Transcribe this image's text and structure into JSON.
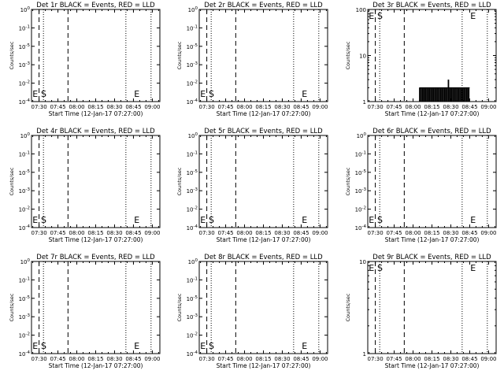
{
  "chart_data": [
    {
      "title": "Det 1r BLACK = Events, RED = LLD",
      "type": "line",
      "ylabel": "Counts/sec",
      "xlabel": "Start Time (12-Jan-17 07:27:00)",
      "xticks": [
        "07:30",
        "07:45",
        "08:00",
        "08:15",
        "08:30",
        "08:45",
        "09:00"
      ],
      "xlim_minutes": [
        -3,
        99
      ],
      "yscale": "log",
      "ylim": [
        0.9,
        1e-06
      ],
      "yticks": [
        {
          "mant": "10",
          "exp": "-4"
        },
        {
          "mant": "10",
          "exp": "-2"
        },
        {
          "mant": "10",
          "exp": "-3"
        },
        {
          "mant": "10",
          "exp": "-5"
        },
        {
          "mant": "10",
          "exp": "-1"
        },
        {
          "mant": "10",
          "exp": "0"
        }
      ],
      "markers": [
        {
          "label": "E",
          "t": -2.2
        },
        {
          "label": "S",
          "t": 4.5
        }
      ],
      "markers_right": [
        {
          "label": "E",
          "t": 78.5
        }
      ],
      "dashed_t": [
        3,
        26
      ],
      "dotted_t": [
        6.5,
        72,
        92
      ],
      "events": [],
      "lld": []
    },
    {
      "title": "Det 2r BLACK = Events, RED = LLD",
      "type": "line",
      "ylabel": "Counts/sec",
      "xlabel": "Start Time (12-Jan-17 07:27:00)",
      "xticks": [
        "07:30",
        "07:45",
        "08:00",
        "08:15",
        "08:30",
        "08:45",
        "09:00"
      ],
      "xlim_minutes": [
        -3,
        99
      ],
      "yscale": "log",
      "ylim": [
        0.9,
        1e-06
      ],
      "yticks": [
        {
          "mant": "10",
          "exp": "-4"
        },
        {
          "mant": "10",
          "exp": "-2"
        },
        {
          "mant": "10",
          "exp": "-3"
        },
        {
          "mant": "10",
          "exp": "-5"
        },
        {
          "mant": "10",
          "exp": "-1"
        },
        {
          "mant": "10",
          "exp": "0"
        }
      ],
      "markers": [
        {
          "label": "E",
          "t": -2.2
        },
        {
          "label": "S",
          "t": 4.5
        }
      ],
      "markers_right": [
        {
          "label": "E",
          "t": 78.5
        }
      ],
      "dashed_t": [
        3,
        26
      ],
      "dotted_t": [
        6.5,
        72,
        92
      ],
      "events": [],
      "lld": []
    },
    {
      "title": "Det 3r BLACK = Events, RED = LLD",
      "type": "line",
      "ylabel": "Counts/sec",
      "xlabel": "Start Time (12-Jan-17 07:27:00)",
      "xticks": [
        "07:30",
        "07:45",
        "08:00",
        "08:15",
        "08:30",
        "08:45",
        "09:00"
      ],
      "xlim_minutes": [
        -3,
        99
      ],
      "yscale": "log",
      "ylim": [
        1,
        100
      ],
      "yticks": [
        {
          "mant": "1",
          "exp": ""
        },
        {
          "mant": "10",
          "exp": ""
        },
        {
          "mant": "100",
          "exp": ""
        }
      ],
      "markers": [
        {
          "label": "E",
          "t": -2.2
        },
        {
          "label": "S",
          "t": 4.5
        }
      ],
      "markers_right": [
        {
          "label": "E",
          "t": 78.5
        }
      ],
      "dashed_t": [
        3,
        26
      ],
      "dotted_t": [
        6.5,
        72,
        92
      ],
      "events": [
        {
          "t0": 38,
          "t1": 78,
          "y": 2,
          "spikes": [
            [
              61,
              3
            ]
          ]
        }
      ],
      "lld": []
    },
    {
      "title": "Det 4r BLACK = Events, RED = LLD",
      "type": "line",
      "ylabel": "Counts/sec",
      "xlabel": "Start Time (12-Jan-17 07:27:00)",
      "xticks": [
        "07:30",
        "07:45",
        "08:00",
        "08:15",
        "08:30",
        "08:45",
        "09:00"
      ],
      "xlim_minutes": [
        -3,
        99
      ],
      "yscale": "log",
      "ylim": [
        0.9,
        1e-06
      ],
      "yticks": [
        {
          "mant": "10",
          "exp": "-4"
        },
        {
          "mant": "10",
          "exp": "-2"
        },
        {
          "mant": "10",
          "exp": "-3"
        },
        {
          "mant": "10",
          "exp": "-5"
        },
        {
          "mant": "10",
          "exp": "-1"
        },
        {
          "mant": "10",
          "exp": "0"
        }
      ],
      "markers": [
        {
          "label": "E",
          "t": -2.2
        },
        {
          "label": "S",
          "t": 4.5
        }
      ],
      "markers_right": [
        {
          "label": "E",
          "t": 78.5
        }
      ],
      "dashed_t": [
        3,
        26
      ],
      "dotted_t": [
        6.5,
        72,
        92
      ],
      "events": [],
      "lld": []
    },
    {
      "title": "Det 5r BLACK = Events, RED = LLD",
      "type": "line",
      "ylabel": "Counts/sec",
      "xlabel": "Start Time (12-Jan-17 07:27:00)",
      "xticks": [
        "07:30",
        "07:45",
        "08:00",
        "08:15",
        "08:30",
        "08:45",
        "09:00"
      ],
      "xlim_minutes": [
        -3,
        99
      ],
      "yscale": "log",
      "ylim": [
        0.9,
        1e-06
      ],
      "yticks": [
        {
          "mant": "10",
          "exp": "-4"
        },
        {
          "mant": "10",
          "exp": "-2"
        },
        {
          "mant": "10",
          "exp": "-3"
        },
        {
          "mant": "10",
          "exp": "-5"
        },
        {
          "mant": "10",
          "exp": "-1"
        },
        {
          "mant": "10",
          "exp": "0"
        }
      ],
      "markers": [
        {
          "label": "E",
          "t": -2.2
        },
        {
          "label": "S",
          "t": 4.5
        }
      ],
      "markers_right": [
        {
          "label": "E",
          "t": 78.5
        }
      ],
      "dashed_t": [
        3,
        26
      ],
      "dotted_t": [
        6.5,
        72,
        92
      ],
      "events": [],
      "lld": []
    },
    {
      "title": "Det 6r BLACK = Events, RED = LLD",
      "type": "line",
      "ylabel": "Counts/sec",
      "xlabel": "Start Time (12-Jan-17 07:27:00)",
      "xticks": [
        "07:30",
        "07:45",
        "08:00",
        "08:15",
        "08:30",
        "08:45",
        "09:00"
      ],
      "xlim_minutes": [
        -3,
        99
      ],
      "yscale": "log",
      "ylim": [
        0.9,
        1e-06
      ],
      "yticks": [
        {
          "mant": "10",
          "exp": "-4"
        },
        {
          "mant": "10",
          "exp": "-2"
        },
        {
          "mant": "10",
          "exp": "-3"
        },
        {
          "mant": "10",
          "exp": "-5"
        },
        {
          "mant": "10",
          "exp": "-1"
        },
        {
          "mant": "10",
          "exp": "0"
        }
      ],
      "markers": [
        {
          "label": "E",
          "t": -2.2
        },
        {
          "label": "S",
          "t": 4.5
        }
      ],
      "markers_right": [
        {
          "label": "E",
          "t": 78.5
        }
      ],
      "dashed_t": [
        3,
        26
      ],
      "dotted_t": [
        6.5,
        72,
        92
      ],
      "events": [],
      "lld": []
    },
    {
      "title": "Det 7r BLACK = Events, RED = LLD",
      "type": "line",
      "ylabel": "Counts/sec",
      "xlabel": "Start Time (12-Jan-17 07:27:00)",
      "xticks": [
        "07:30",
        "07:45",
        "08:00",
        "08:15",
        "08:30",
        "08:45",
        "09:00"
      ],
      "xlim_minutes": [
        -3,
        99
      ],
      "yscale": "log",
      "ylim": [
        0.9,
        1e-06
      ],
      "yticks": [
        {
          "mant": "10",
          "exp": "-4"
        },
        {
          "mant": "10",
          "exp": "-2"
        },
        {
          "mant": "10",
          "exp": "-3"
        },
        {
          "mant": "10",
          "exp": "-5"
        },
        {
          "mant": "10",
          "exp": "-1"
        },
        {
          "mant": "10",
          "exp": "0"
        }
      ],
      "markers": [
        {
          "label": "E",
          "t": -2.2
        },
        {
          "label": "S",
          "t": 4.5
        }
      ],
      "markers_right": [
        {
          "label": "E",
          "t": 78.5
        }
      ],
      "dashed_t": [
        3,
        26
      ],
      "dotted_t": [
        6.5,
        72,
        92
      ],
      "events": [],
      "lld": []
    },
    {
      "title": "Det 8r BLACK = Events, RED = LLD",
      "type": "line",
      "ylabel": "Counts/sec",
      "xlabel": "Start Time (12-Jan-17 07:27:00)",
      "xticks": [
        "07:30",
        "07:45",
        "08:00",
        "08:15",
        "08:30",
        "08:45",
        "09:00"
      ],
      "xlim_minutes": [
        -3,
        99
      ],
      "yscale": "log",
      "ylim": [
        0.9,
        1e-06
      ],
      "yticks": [
        {
          "mant": "10",
          "exp": "-4"
        },
        {
          "mant": "10",
          "exp": "-2"
        },
        {
          "mant": "10",
          "exp": "-3"
        },
        {
          "mant": "10",
          "exp": "-5"
        },
        {
          "mant": "10",
          "exp": "-1"
        },
        {
          "mant": "10",
          "exp": "0"
        }
      ],
      "markers": [
        {
          "label": "E",
          "t": -2.2
        },
        {
          "label": "S",
          "t": 4.5
        }
      ],
      "markers_right": [
        {
          "label": "E",
          "t": 78.5
        }
      ],
      "dashed_t": [
        3,
        26
      ],
      "dotted_t": [
        6.5,
        72,
        92
      ],
      "events": [],
      "lld": []
    },
    {
      "title": "Det 9r BLACK = Events, RED = LLD",
      "type": "line",
      "ylabel": "Counts/sec",
      "xlabel": "Start Time (12-Jan-17 07:27:00)",
      "xticks": [
        "07:30",
        "07:45",
        "08:00",
        "08:15",
        "08:30",
        "08:45",
        "09:00"
      ],
      "xlim_minutes": [
        -3,
        99
      ],
      "yscale": "log",
      "ylim": [
        1,
        10
      ],
      "yticks": [
        {
          "mant": "1",
          "exp": ""
        },
        {
          "mant": "10",
          "exp": ""
        }
      ],
      "markers": [
        {
          "label": "E",
          "t": -2.2
        },
        {
          "label": "S",
          "t": 4.5
        }
      ],
      "markers_right": [
        {
          "label": "E",
          "t": 78.5
        }
      ],
      "dashed_t": [
        3,
        26
      ],
      "dotted_t": [
        6.5,
        72,
        92
      ],
      "events": [],
      "lld": []
    }
  ],
  "colors": {
    "events": "#000000",
    "lld": "#ff0000",
    "axes": "#000000",
    "background": "#ffffff"
  }
}
